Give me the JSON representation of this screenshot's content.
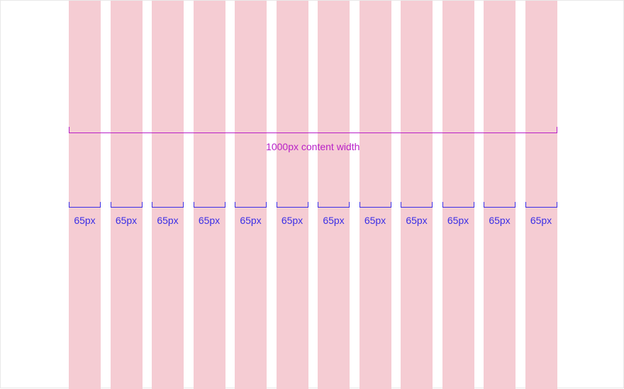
{
  "grid": {
    "column_count": 12,
    "column_color": "#f5ccd3",
    "total_label": "1000px content width",
    "total_color": "#b81fc7",
    "columns": [
      {
        "label": "65px"
      },
      {
        "label": "65px"
      },
      {
        "label": "65px"
      },
      {
        "label": "65px"
      },
      {
        "label": "65px"
      },
      {
        "label": "65px"
      },
      {
        "label": "65px"
      },
      {
        "label": "65px"
      },
      {
        "label": "65px"
      },
      {
        "label": "65px"
      },
      {
        "label": "65px"
      },
      {
        "label": "65px"
      }
    ],
    "column_label_color": "#3a2ee6"
  }
}
